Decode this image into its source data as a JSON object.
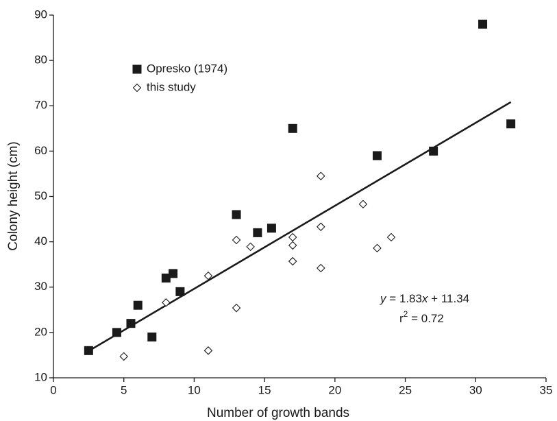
{
  "chart_data": {
    "type": "scatter",
    "x_label": "Number of growth bands",
    "y_label": "Colony height (cm)",
    "xlim": [
      0,
      35
    ],
    "ylim": [
      10,
      90
    ],
    "xticks": [
      0,
      5,
      10,
      15,
      20,
      25,
      30,
      35
    ],
    "yticks": [
      10,
      20,
      30,
      40,
      50,
      60,
      70,
      80,
      90
    ],
    "grid": false,
    "series": [
      {
        "name": "Opresko (1974)",
        "marker": "square",
        "color": "#1a1a1a",
        "x": [
          2.5,
          4.5,
          5.5,
          6,
          7,
          8,
          8.5,
          9,
          13,
          14.5,
          15.5,
          17,
          23,
          27,
          30.5,
          32.5
        ],
        "values": [
          16,
          20,
          22,
          26,
          19,
          32,
          33,
          29,
          46,
          42,
          43,
          65,
          59,
          60,
          88,
          66
        ]
      },
      {
        "name": "this study",
        "marker": "diamond",
        "color": "#1a1a1a",
        "x": [
          5,
          8,
          11,
          11,
          13,
          13,
          14,
          17,
          17,
          17,
          19,
          19,
          19,
          22,
          23,
          24
        ],
        "values": [
          14.7,
          26.6,
          32.5,
          16,
          40.4,
          25.4,
          38.9,
          41,
          39.2,
          35.7,
          54.5,
          43.3,
          34.2,
          48.3,
          38.6,
          41
        ]
      }
    ],
    "fit": {
      "slope": 1.83,
      "intercept": 11.34,
      "x_range": [
        2.5,
        32.5
      ],
      "color": "#1a1a1a"
    },
    "equation_parts": [
      "y",
      " = 1.83",
      "x",
      " + 11.34"
    ],
    "r2_parts": [
      "r",
      "2",
      " = 0.72"
    ]
  }
}
